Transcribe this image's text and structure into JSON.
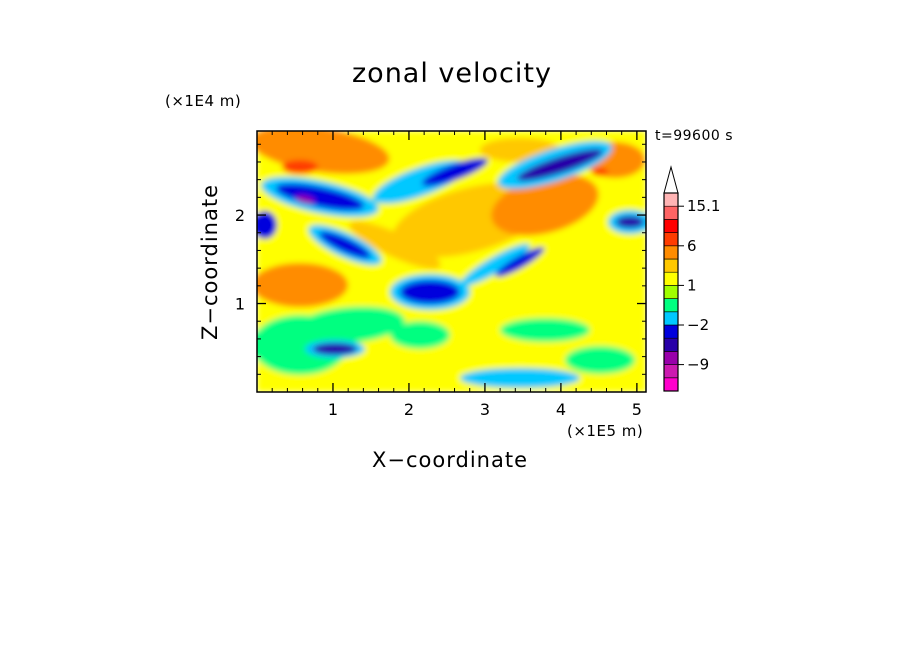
{
  "chart_data": {
    "type": "heatmap",
    "title": "zonal velocity",
    "xlabel": "X−coordinate",
    "ylabel": "Z−coordinate",
    "x_unit": "(×1E5 m)",
    "y_unit": "(×1E4 m)",
    "time_label": "t=99600 s",
    "xlim": [
      0,
      5.12
    ],
    "ylim": [
      0,
      2.95
    ],
    "x_ticks": [
      1,
      2,
      3,
      4,
      5
    ],
    "y_ticks": [
      1,
      2
    ],
    "colorbar": {
      "levels": [
        -15,
        -12,
        -9,
        -6,
        -4,
        -2,
        -1,
        0,
        1,
        2,
        4,
        6,
        9,
        12,
        15.1
      ],
      "colors": [
        "#ff00cc",
        "#cc1ab0",
        "#9900aa",
        "#2800a8",
        "#0000dd",
        "#00c8ff",
        "#00ff80",
        "#a0ff00",
        "#ffff00",
        "#ffc800",
        "#ff8c00",
        "#ff3c00",
        "#ff0000",
        "#ff6464",
        "#ffb4b4",
        "#ffffff"
      ],
      "tick_labels": [
        "15.1",
        "6",
        "1",
        "−2",
        "−9"
      ],
      "extend": "max"
    }
  }
}
